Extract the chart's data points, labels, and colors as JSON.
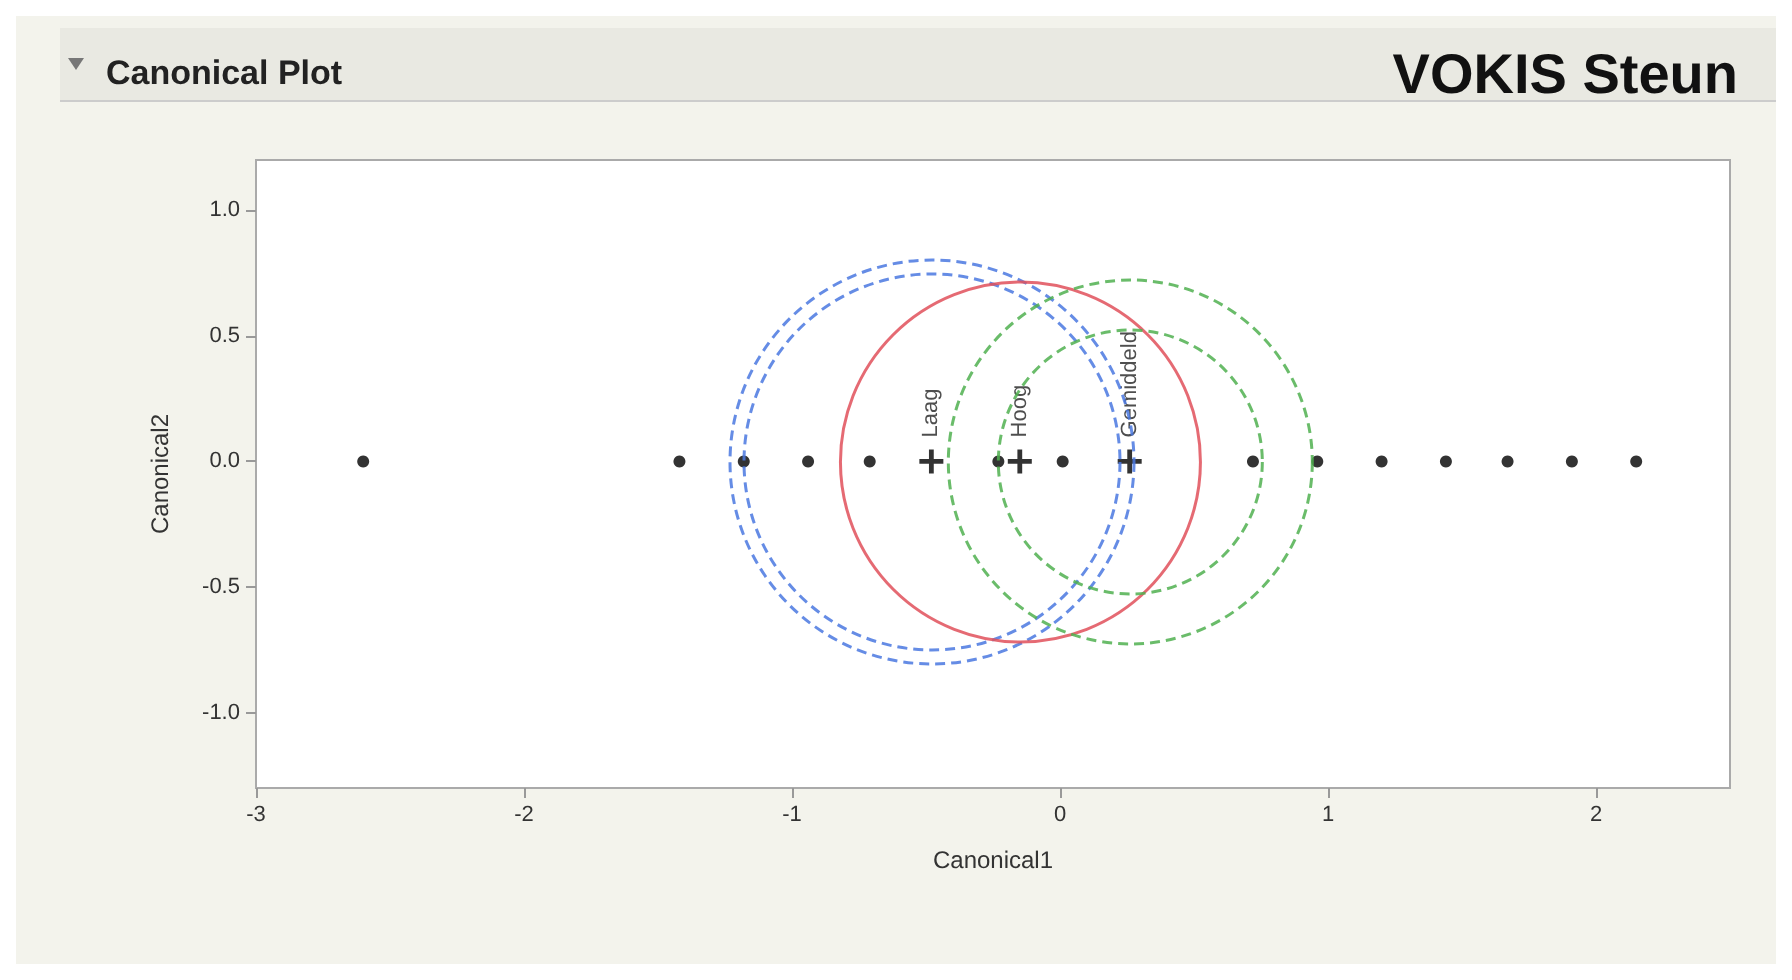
{
  "chart_data": {
    "type": "scatter",
    "title": "Canonical Plot",
    "subtitle": "VOKIS Steun",
    "xlabel": "Canonical1",
    "ylabel": "Canonical2",
    "xlim": [
      -3,
      2.5
    ],
    "xticks": [
      -3,
      -2,
      -1,
      0,
      1,
      2
    ],
    "ylim": [
      -1.3,
      1.2
    ],
    "yticks": [
      {
        "value": -1,
        "label": "-1.0"
      },
      {
        "value": -0.5,
        "label": "-0.5"
      },
      {
        "value": 0,
        "label": "0.0"
      },
      {
        "value": 0.5,
        "label": "0.5"
      },
      {
        "value": 1,
        "label": "1.0"
      }
    ],
    "grid": false,
    "series": [
      {
        "type": "scatter",
        "color": "#000000",
        "marker": "circle",
        "x": [
          -2.6,
          -1.42,
          -1.18,
          -0.94,
          -0.71,
          -0.23,
          0.01,
          0.72,
          0.96,
          1.2,
          1.44,
          1.67,
          1.91,
          2.15
        ],
        "values": [
          0,
          0,
          0,
          0,
          0,
          0,
          0,
          0,
          0,
          0,
          0,
          0,
          0,
          0
        ]
      },
      {
        "type": "scatter",
        "color": "#000000",
        "marker": "cross",
        "x": [
          -0.48,
          -0.15,
          0.26
        ],
        "values": [
          0,
          0,
          0
        ],
        "value_labels": [
          "Laag",
          "Hoog",
          "Gemiddeld"
        ]
      }
    ]
  }
}
